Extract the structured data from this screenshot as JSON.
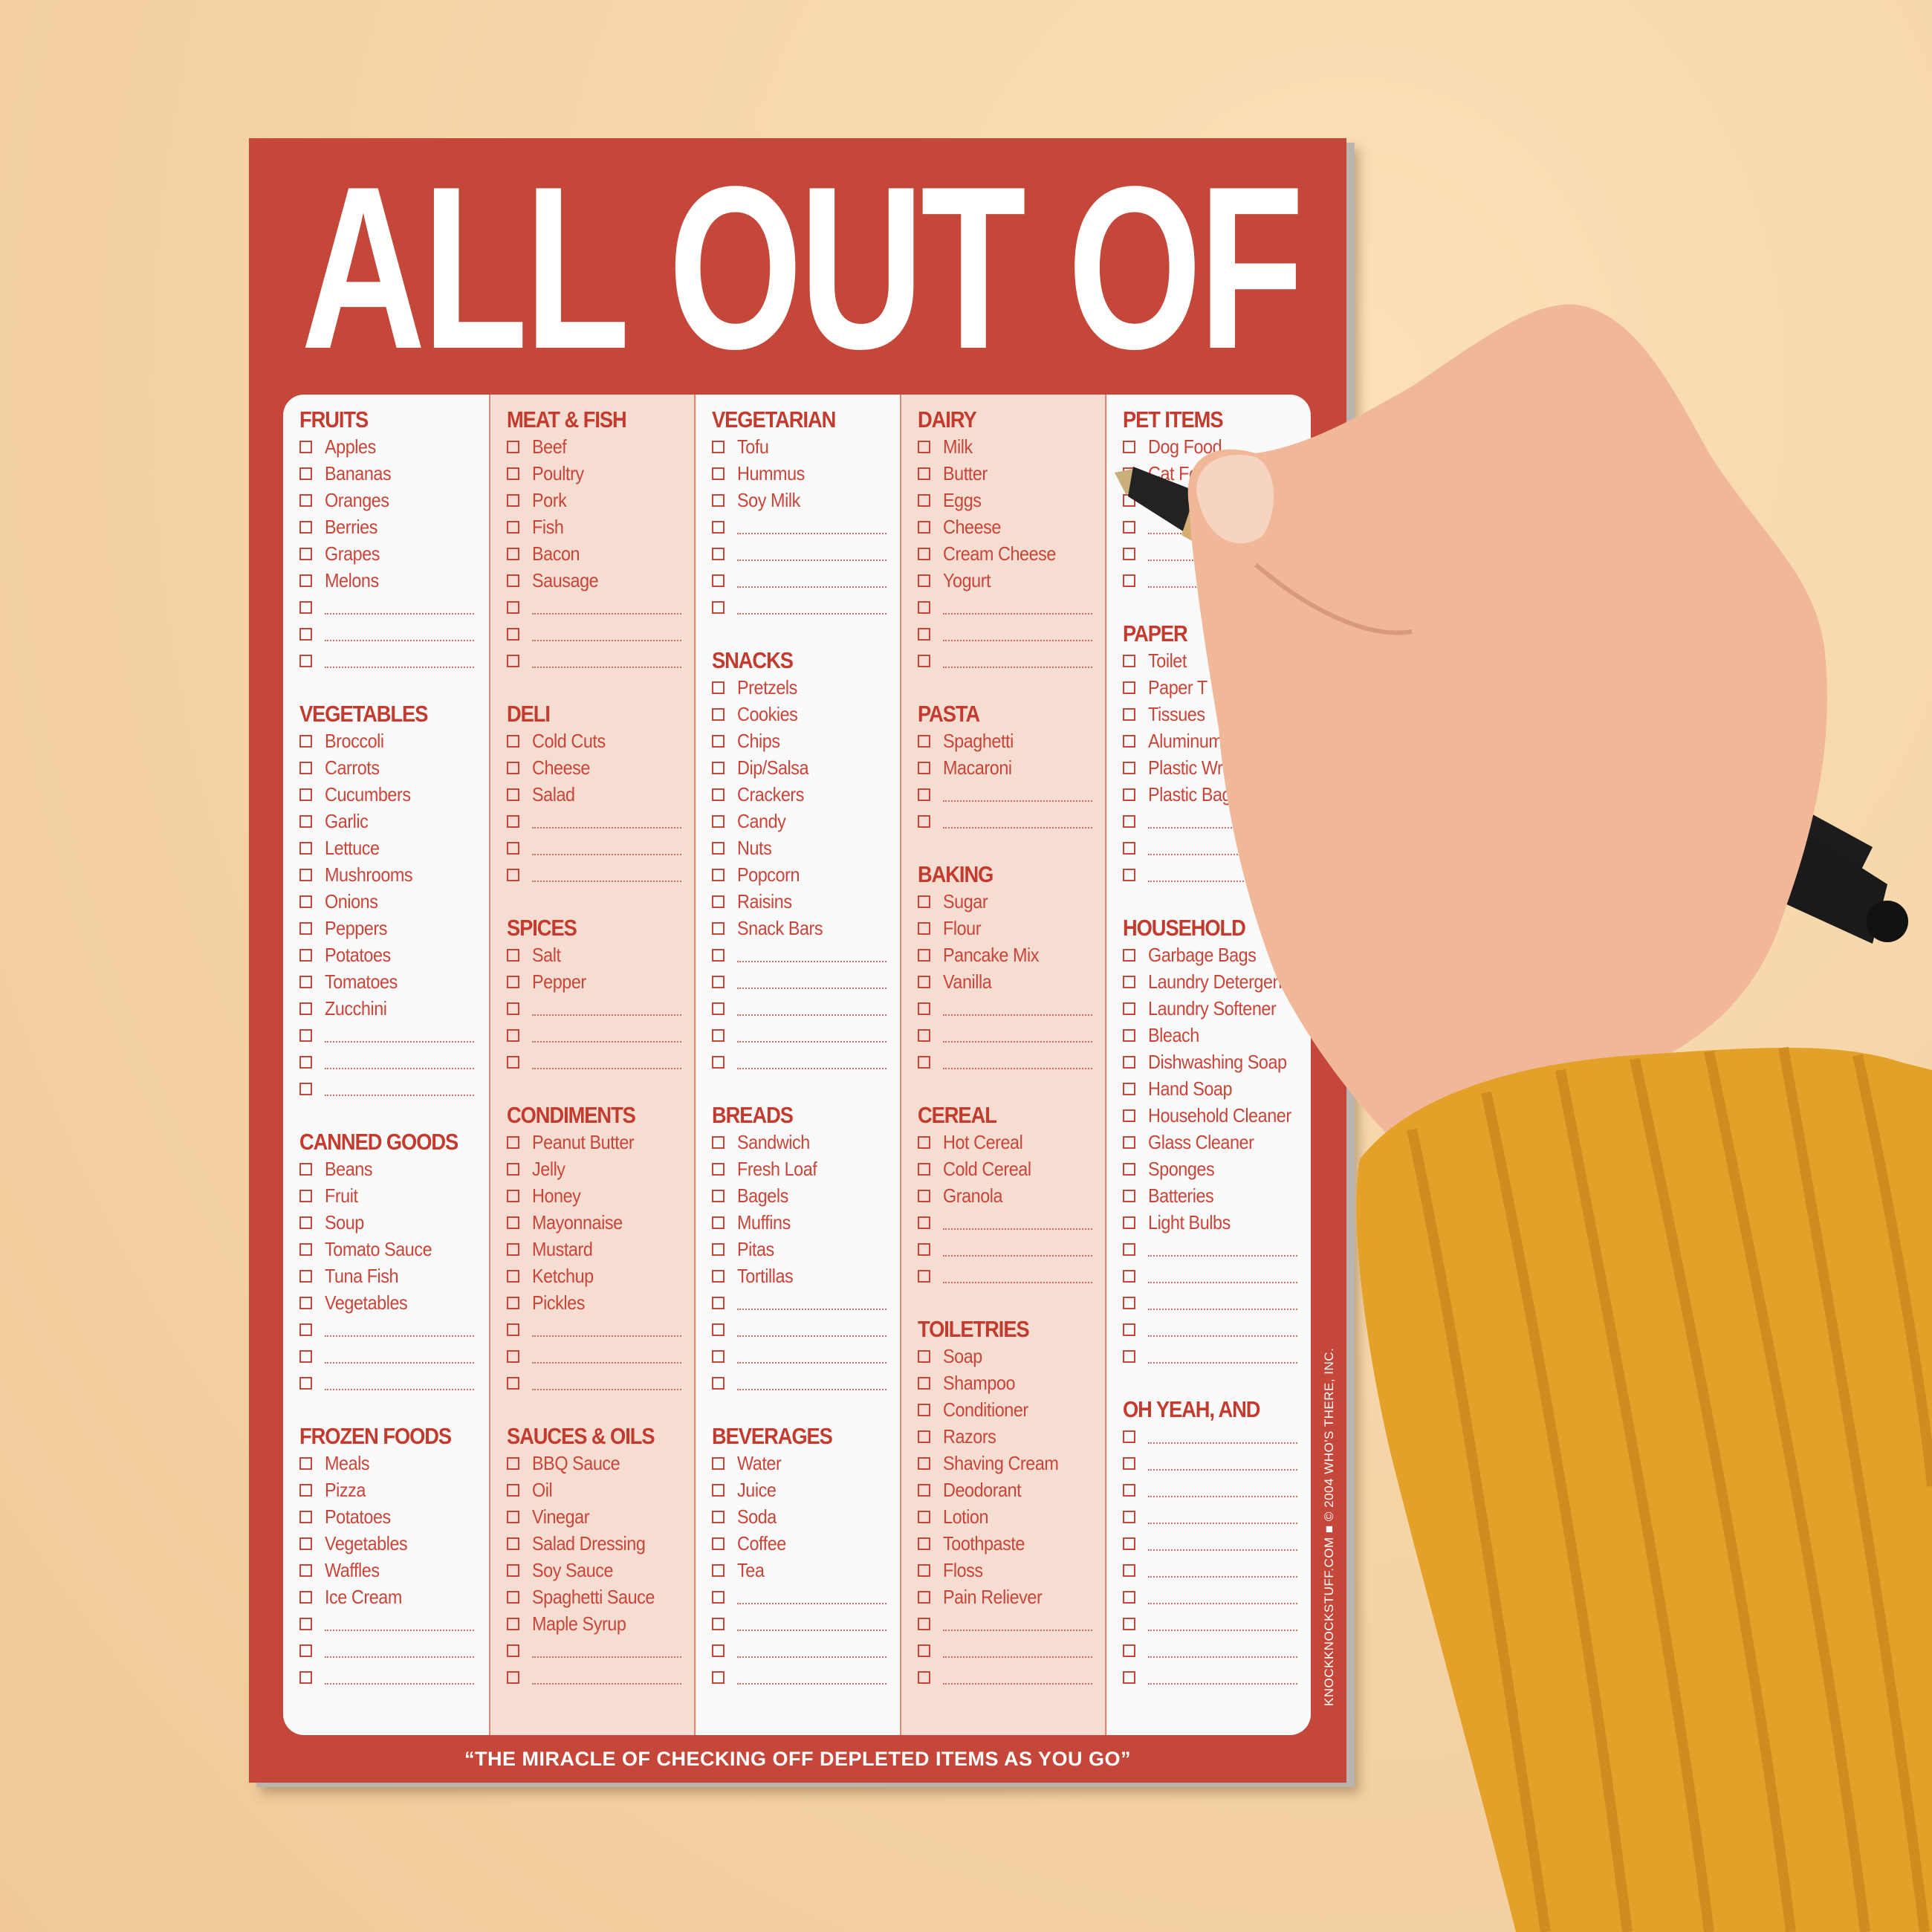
{
  "title": "ALL OUT OF",
  "tagline": "“THE MIRACLE OF CHECKING OFF DEPLETED ITEMS AS YOU GO”",
  "copyright": "KNOCKKNOCKSTUFF.COM ■ © 2004 WHO'S THERE, INC.",
  "colors": {
    "pad": "#c4473a",
    "text": "#c8453a",
    "panel": "#fafafa",
    "panel_alt": "#f5ddd2",
    "background": "#f5d3a5"
  },
  "columns": [
    {
      "sections": [
        {
          "title": "FRUITS",
          "items": [
            "Apples",
            "Bananas",
            "Oranges",
            "Berries",
            "Grapes",
            "Melons"
          ],
          "blanks": 3
        },
        {
          "title": "VEGETABLES",
          "items": [
            "Broccoli",
            "Carrots",
            "Cucumbers",
            "Garlic",
            "Lettuce",
            "Mushrooms",
            "Onions",
            "Peppers",
            "Potatoes",
            "Tomatoes",
            "Zucchini"
          ],
          "blanks": 3
        },
        {
          "title": "CANNED GOODS",
          "items": [
            "Beans",
            "Fruit",
            "Soup",
            "Tomato Sauce",
            "Tuna Fish",
            "Vegetables"
          ],
          "blanks": 3
        },
        {
          "title": "FROZEN FOODS",
          "items": [
            "Meals",
            "Pizza",
            "Potatoes",
            "Vegetables",
            "Waffles",
            "Ice Cream"
          ],
          "blanks": 3
        }
      ]
    },
    {
      "sections": [
        {
          "title": "MEAT & FISH",
          "items": [
            "Beef",
            "Poultry",
            "Pork",
            "Fish",
            "Bacon",
            "Sausage"
          ],
          "blanks": 3
        },
        {
          "title": "DELI",
          "items": [
            "Cold Cuts",
            "Cheese",
            "Salad"
          ],
          "blanks": 3
        },
        {
          "title": "SPICES",
          "items": [
            "Salt",
            "Pepper"
          ],
          "blanks": 3
        },
        {
          "title": "CONDIMENTS",
          "items": [
            "Peanut Butter",
            "Jelly",
            "Honey",
            "Mayonnaise",
            "Mustard",
            "Ketchup",
            "Pickles"
          ],
          "blanks": 3
        },
        {
          "title": "SAUCES & OILS",
          "items": [
            "BBQ Sauce",
            "Oil",
            "Vinegar",
            "Salad Dressing",
            "Soy Sauce",
            "Spaghetti Sauce",
            "Maple Syrup"
          ],
          "blanks": 2
        }
      ]
    },
    {
      "sections": [
        {
          "title": "VEGETARIAN",
          "items": [
            "Tofu",
            "Hummus",
            "Soy Milk"
          ],
          "blanks": 4
        },
        {
          "title": "SNACKS",
          "items": [
            "Pretzels",
            "Cookies",
            "Chips",
            "Dip/Salsa",
            "Crackers",
            "Candy",
            "Nuts",
            "Popcorn",
            "Raisins",
            "Snack Bars"
          ],
          "blanks": 5
        },
        {
          "title": "BREADS",
          "items": [
            "Sandwich",
            "Fresh Loaf",
            "Bagels",
            "Muffins",
            "Pitas",
            "Tortillas"
          ],
          "blanks": 4
        },
        {
          "title": "BEVERAGES",
          "items": [
            "Water",
            "Juice",
            "Soda",
            "Coffee",
            "Tea"
          ],
          "blanks": 4
        }
      ]
    },
    {
      "sections": [
        {
          "title": "DAIRY",
          "items": [
            "Milk",
            "Butter",
            "Eggs",
            "Cheese",
            "Cream Cheese",
            "Yogurt"
          ],
          "blanks": 3
        },
        {
          "title": "PASTA",
          "items": [
            "Spaghetti",
            "Macaroni"
          ],
          "blanks": 2
        },
        {
          "title": "BAKING",
          "items": [
            "Sugar",
            "Flour",
            "Pancake Mix",
            "Vanilla"
          ],
          "blanks": 3
        },
        {
          "title": "CEREAL",
          "items": [
            "Hot Cereal",
            "Cold Cereal",
            "Granola"
          ],
          "blanks": 3
        },
        {
          "title": "TOILETRIES",
          "items": [
            "Soap",
            "Shampoo",
            "Conditioner",
            "Razors",
            "Shaving Cream",
            "Deodorant",
            "Lotion",
            "Toothpaste",
            "Floss",
            "Pain Reliever"
          ],
          "blanks": 3
        }
      ]
    },
    {
      "sections": [
        {
          "title": "PET ITEMS",
          "items": [
            "Dog Food",
            "Cat Food"
          ],
          "blanks": 4
        },
        {
          "title": "PAPER",
          "items": [
            "Toilet",
            "Paper T",
            "Tissues",
            "Aluminum",
            "Plastic Wrap",
            "Plastic Baggies"
          ],
          "blanks": 3
        },
        {
          "title": "HOUSEHOLD",
          "items": [
            "Garbage Bags",
            "Laundry Detergent",
            "Laundry Softener",
            "Bleach",
            "Dishwashing Soap",
            "Hand Soap",
            "Household Cleaner",
            "Glass Cleaner",
            "Sponges",
            "Batteries",
            "Light Bulbs"
          ],
          "blanks": 5
        },
        {
          "title": "OH YEAH, AND",
          "items": [],
          "blanks": 10
        }
      ]
    }
  ]
}
